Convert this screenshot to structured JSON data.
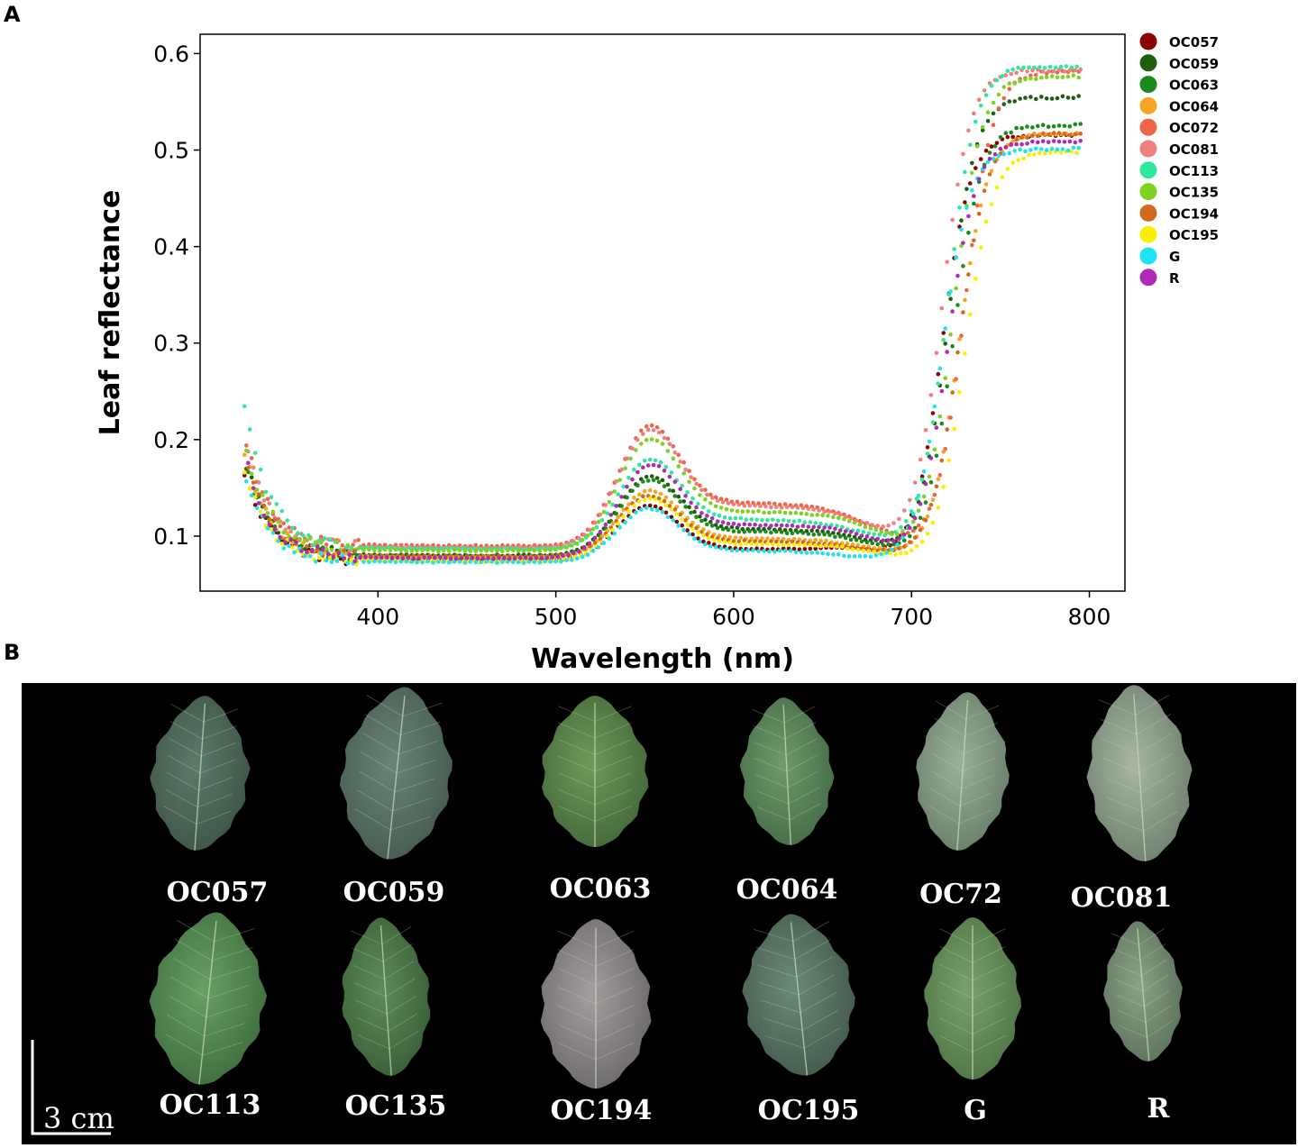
{
  "panels": {
    "a": "A",
    "b": "B"
  },
  "chart_data": {
    "type": "scatter",
    "title": "",
    "xlabel": "Wavelength (nm)",
    "ylabel": "Leaf reflectance",
    "xlim": [
      300,
      820
    ],
    "ylim": [
      0.043,
      0.62
    ],
    "xticks": [
      400,
      500,
      600,
      700,
      800
    ],
    "yticks": [
      0.1,
      0.2,
      0.3,
      0.4,
      0.5,
      0.6
    ],
    "xtick_labels": [
      "400",
      "500",
      "600",
      "700",
      "800"
    ],
    "ytick_labels": [
      "0.1",
      "0.2",
      "0.3",
      "0.4",
      "0.5",
      "0.6"
    ],
    "grid": false,
    "legend_position": "right-outside",
    "x_range": [
      325,
      795
    ],
    "x_step": 3,
    "series": [
      {
        "name": "OC057",
        "color": "#8b0000",
        "params": {
          "start": 0.165,
          "baseline": 0.075,
          "peak": 0.128,
          "redge": 0.087,
          "valley": 0.081,
          "nir": 0.522
        }
      },
      {
        "name": "OC059",
        "color": "#1d5e0f",
        "params": {
          "start": 0.18,
          "baseline": 0.08,
          "peak": 0.153,
          "redge": 0.108,
          "valley": 0.085,
          "nir": 0.56
        }
      },
      {
        "name": "OC063",
        "color": "#1a8a1a",
        "params": {
          "start": 0.178,
          "baseline": 0.079,
          "peak": 0.15,
          "redge": 0.105,
          "valley": 0.083,
          "nir": 0.53
        }
      },
      {
        "name": "OC064",
        "color": "#f5a623",
        "params": {
          "start": 0.19,
          "baseline": 0.078,
          "peak": 0.141,
          "redge": 0.098,
          "valley": 0.081,
          "nir": 0.52
        }
      },
      {
        "name": "OC072",
        "color": "#f06449",
        "params": {
          "start": 0.205,
          "baseline": 0.09,
          "peak": 0.2,
          "redge": 0.135,
          "valley": 0.096,
          "nir": 0.588
        }
      },
      {
        "name": "OC081",
        "color": "#f08080",
        "params": {
          "start": 0.2,
          "baseline": 0.088,
          "peak": 0.196,
          "redge": 0.132,
          "valley": 0.095,
          "nir": 0.59
        }
      },
      {
        "name": "OC113",
        "color": "#2ee8a0",
        "params": {
          "start": 0.236,
          "baseline": 0.087,
          "peak": 0.17,
          "redge": 0.118,
          "valley": 0.09,
          "nir": 0.59
        }
      },
      {
        "name": "OC135",
        "color": "#7ed321",
        "params": {
          "start": 0.198,
          "baseline": 0.085,
          "peak": 0.188,
          "redge": 0.126,
          "valley": 0.094,
          "nir": 0.585
        }
      },
      {
        "name": "OC194",
        "color": "#d2691e",
        "params": {
          "start": 0.19,
          "baseline": 0.079,
          "peak": 0.137,
          "redge": 0.095,
          "valley": 0.08,
          "nir": 0.518
        }
      },
      {
        "name": "OC195",
        "color": "#f8f000",
        "params": {
          "start": 0.17,
          "baseline": 0.074,
          "peak": 0.133,
          "redge": 0.092,
          "valley": 0.078,
          "nir": 0.502
        }
      },
      {
        "name": "G",
        "color": "#1ee3f0",
        "params": {
          "start": 0.16,
          "baseline": 0.073,
          "peak": 0.125,
          "redge": 0.085,
          "valley": 0.072,
          "nir": 0.5
        }
      },
      {
        "name": "R",
        "color": "#b02ab8",
        "params": {
          "start": 0.185,
          "baseline": 0.077,
          "peak": 0.163,
          "redge": 0.112,
          "valley": 0.086,
          "nir": 0.518
        }
      }
    ]
  },
  "photo_labels": {
    "row1": [
      "OC057",
      "OC059",
      "OC063",
      "OC064",
      "OC72",
      "OC081"
    ],
    "row2": [
      "OC113",
      "OC135",
      "OC194",
      "OC195",
      "G",
      "R"
    ]
  },
  "scale_label": "3 cm",
  "colors": {
    "photo_bg": "#000000",
    "leaf_light": "#6f9a66",
    "leaf_dark": "#3c5a40",
    "leaf_pale": "#9aab9c"
  }
}
